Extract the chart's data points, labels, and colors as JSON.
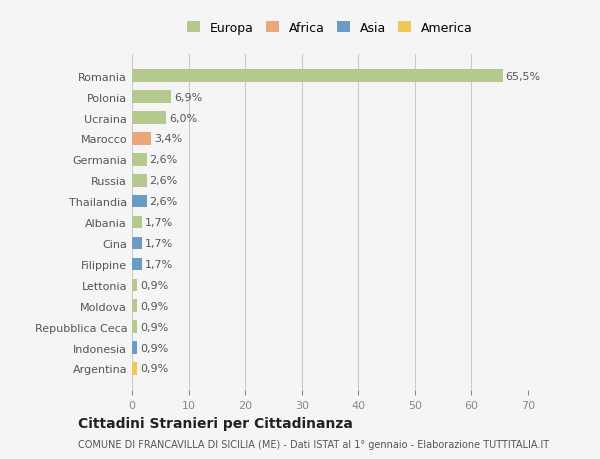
{
  "categories": [
    "Argentina",
    "Indonesia",
    "Repubblica Ceca",
    "Moldova",
    "Lettonia",
    "Filippine",
    "Cina",
    "Albania",
    "Thailandia",
    "Russia",
    "Germania",
    "Marocco",
    "Ucraina",
    "Polonia",
    "Romania"
  ],
  "values": [
    0.9,
    0.9,
    0.9,
    0.9,
    0.9,
    1.7,
    1.7,
    1.7,
    2.6,
    2.6,
    2.6,
    3.4,
    6.0,
    6.9,
    65.5
  ],
  "labels": [
    "0,9%",
    "0,9%",
    "0,9%",
    "0,9%",
    "0,9%",
    "1,7%",
    "1,7%",
    "1,7%",
    "2,6%",
    "2,6%",
    "2,6%",
    "3,4%",
    "6,0%",
    "6,9%",
    "65,5%"
  ],
  "continents": [
    "America",
    "Asia",
    "Europa",
    "Europa",
    "Europa",
    "Asia",
    "Asia",
    "Europa",
    "Asia",
    "Europa",
    "Europa",
    "Africa",
    "Europa",
    "Europa",
    "Europa"
  ],
  "continent_colors": {
    "Europa": "#b5c98e",
    "Africa": "#e8a87c",
    "Asia": "#6b9bc3",
    "America": "#f0c85a"
  },
  "legend_order": [
    "Europa",
    "Africa",
    "Asia",
    "America"
  ],
  "title": "Cittadini Stranieri per Cittadinanza",
  "subtitle": "COMUNE DI FRANCAVILLA DI SICILIA (ME) - Dati ISTAT al 1° gennaio - Elaborazione TUTTITALIA.IT",
  "bg_color": "#f5f5f5",
  "xlim": [
    0,
    70
  ],
  "xticks": [
    0,
    10,
    20,
    30,
    40,
    50,
    60,
    70
  ]
}
